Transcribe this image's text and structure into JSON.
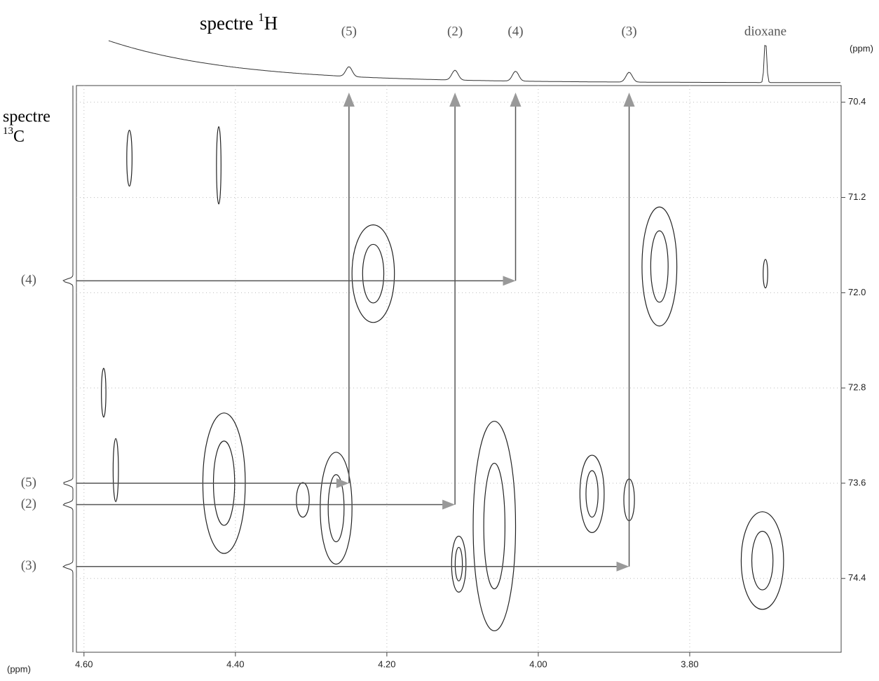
{
  "chart_data": {
    "type": "hsqc",
    "title_1h": {
      "text": "spectre",
      "sup": "1",
      "nucleus": "H"
    },
    "title_13c": {
      "text": "spectre",
      "sup": "13",
      "nucleus": "C"
    },
    "x_unit": "(ppm)",
    "y_unit": "(ppm)",
    "xlim": [
      4.61,
      3.6
    ],
    "ylim": [
      70.26,
      75.02
    ],
    "xticks": [
      {
        "value": 4.6,
        "label": "4.60"
      },
      {
        "value": 4.4,
        "label": "4.40"
      },
      {
        "value": 4.2,
        "label": "4.20"
      },
      {
        "value": 4.0,
        "label": "4.00"
      },
      {
        "value": 3.8,
        "label": "3.80"
      }
    ],
    "yticks": [
      70.4,
      71.2,
      {
        "value": 72.0,
        "label": "72.0"
      },
      72.8,
      73.6,
      74.4
    ],
    "grid": true,
    "assignments": [
      {
        "label": "(5)",
        "h": 4.25,
        "c": 73.6
      },
      {
        "label": "(2)",
        "h": 4.11,
        "c": 73.78
      },
      {
        "label": "(4)",
        "h": 4.03,
        "c": 71.9
      },
      {
        "label": "(3)",
        "h": 3.88,
        "c": 74.3
      }
    ],
    "solvent": {
      "label": "dioxane",
      "h": 3.7
    },
    "peaks": [
      {
        "x": 4.218,
        "y": 71.84,
        "dx": 0.056,
        "dy": 0.82
      },
      {
        "x": 3.84,
        "y": 71.78,
        "dx": 0.046,
        "dy": 1.0
      },
      {
        "x": 4.415,
        "y": 73.6,
        "dx": 0.056,
        "dy": 1.18
      },
      {
        "x": 4.267,
        "y": 73.81,
        "dx": 0.042,
        "dy": 0.94
      },
      {
        "x": 4.058,
        "y": 73.96,
        "dx": 0.056,
        "dy": 1.76
      },
      {
        "x": 3.929,
        "y": 73.69,
        "dx": 0.032,
        "dy": 0.65
      },
      {
        "x": 3.704,
        "y": 74.25,
        "dx": 0.056,
        "dy": 0.82
      },
      {
        "x": 4.105,
        "y": 74.28,
        "dx": 0.019,
        "dy": 0.47
      },
      {
        "x": 4.311,
        "y": 73.74,
        "dx": 0.017,
        "dy": 0.29
      },
      {
        "x": 3.88,
        "y": 73.74,
        "dx": 0.014,
        "dy": 0.35
      },
      {
        "x": 4.422,
        "y": 70.93,
        "dx": 0.006,
        "dy": 0.65
      },
      {
        "x": 4.54,
        "y": 70.87,
        "dx": 0.007,
        "dy": 0.47
      },
      {
        "x": 3.7,
        "y": 71.84,
        "dx": 0.006,
        "dy": 0.24
      },
      {
        "x": 4.558,
        "y": 73.49,
        "dx": 0.007,
        "dy": 0.53
      },
      {
        "x": 4.574,
        "y": 72.84,
        "dx": 0.006,
        "dy": 0.41
      }
    ]
  }
}
